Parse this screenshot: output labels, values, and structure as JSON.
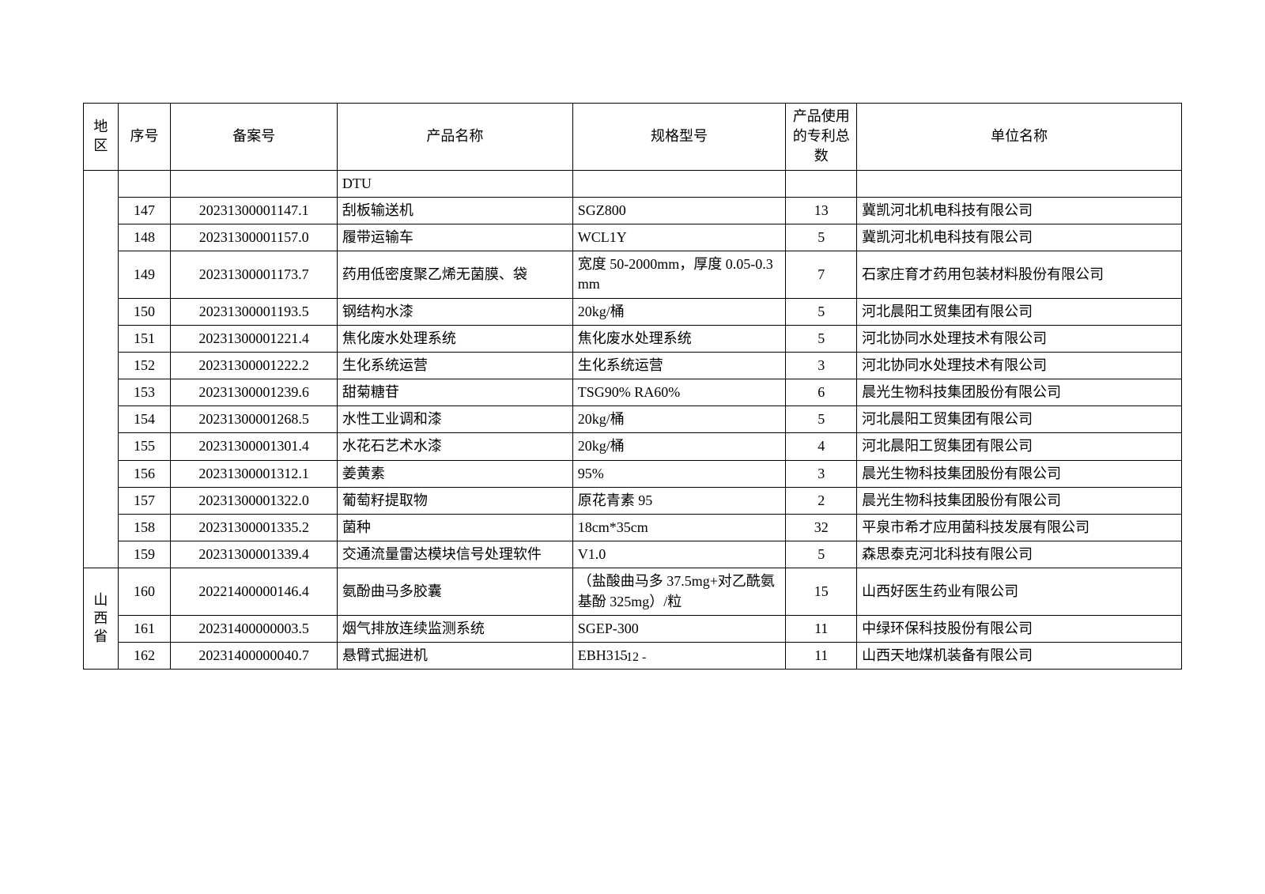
{
  "headers": {
    "region": "地区",
    "seq": "序号",
    "filing": "备案号",
    "product": "产品名称",
    "spec": "规格型号",
    "patent": "产品使用的专利总数",
    "company": "单位名称"
  },
  "continuation_row": {
    "product": "DTU"
  },
  "rows": [
    {
      "seq": "147",
      "filing": "20231300001147.1",
      "product": "刮板输送机",
      "spec": "SGZ800",
      "patent": "13",
      "company": "冀凯河北机电科技有限公司"
    },
    {
      "seq": "148",
      "filing": "20231300001157.0",
      "product": "履带运输车",
      "spec": "WCL1Y",
      "patent": "5",
      "company": "冀凯河北机电科技有限公司"
    },
    {
      "seq": "149",
      "filing": "20231300001173.7",
      "product": "药用低密度聚乙烯无菌膜、袋",
      "spec": "宽度 50-2000mm，厚度 0.05-0.3mm",
      "patent": "7",
      "company": "石家庄育才药用包装材料股份有限公司"
    },
    {
      "seq": "150",
      "filing": "20231300001193.5",
      "product": "钢结构水漆",
      "spec": "20kg/桶",
      "patent": "5",
      "company": "河北晨阳工贸集团有限公司"
    },
    {
      "seq": "151",
      "filing": "20231300001221.4",
      "product": "焦化废水处理系统",
      "spec": "焦化废水处理系统",
      "patent": "5",
      "company": "河北协同水处理技术有限公司"
    },
    {
      "seq": "152",
      "filing": "20231300001222.2",
      "product": "生化系统运营",
      "spec": "生化系统运营",
      "patent": "3",
      "company": "河北协同水处理技术有限公司"
    },
    {
      "seq": "153",
      "filing": "20231300001239.6",
      "product": "甜菊糖苷",
      "spec": "TSG90% RA60%",
      "patent": "6",
      "company": "晨光生物科技集团股份有限公司"
    },
    {
      "seq": "154",
      "filing": "20231300001268.5",
      "product": "水性工业调和漆",
      "spec": "20kg/桶",
      "patent": "5",
      "company": "河北晨阳工贸集团有限公司"
    },
    {
      "seq": "155",
      "filing": "20231300001301.4",
      "product": "水花石艺术水漆",
      "spec": "20kg/桶",
      "patent": "4",
      "company": "河北晨阳工贸集团有限公司"
    },
    {
      "seq": "156",
      "filing": "20231300001312.1",
      "product": "姜黄素",
      "spec": "95%",
      "patent": "3",
      "company": "晨光生物科技集团股份有限公司"
    },
    {
      "seq": "157",
      "filing": "20231300001322.0",
      "product": "葡萄籽提取物",
      "spec": "原花青素 95",
      "patent": "2",
      "company": "晨光生物科技集团股份有限公司"
    },
    {
      "seq": "158",
      "filing": "20231300001335.2",
      "product": "菌种",
      "spec": "18cm*35cm",
      "patent": "32",
      "company": "平泉市希才应用菌科技发展有限公司"
    },
    {
      "seq": "159",
      "filing": "20231300001339.4",
      "product": "交通流量雷达模块信号处理软件",
      "spec": "V1.0",
      "patent": "5",
      "company": "森思泰克河北科技有限公司"
    }
  ],
  "region2": {
    "label": "山西省",
    "rows": [
      {
        "seq": "160",
        "filing": "20221400000146.4",
        "product": "氨酚曲马多胶囊",
        "spec": "（盐酸曲马多 37.5mg+对乙酰氨基酚 325mg）/粒",
        "patent": "15",
        "company": "山西好医生药业有限公司"
      },
      {
        "seq": "161",
        "filing": "20231400000003.5",
        "product": "烟气排放连续监测系统",
        "spec": "SGEP-300",
        "patent": "11",
        "company": "中绿环保科技股份有限公司"
      },
      {
        "seq": "162",
        "filing": "20231400000040.7",
        "product": "悬臂式掘进机",
        "spec": "EBH315",
        "patent": "11",
        "company": "山西天地煤机装备有限公司"
      }
    ]
  },
  "page_number": "- 12 -"
}
